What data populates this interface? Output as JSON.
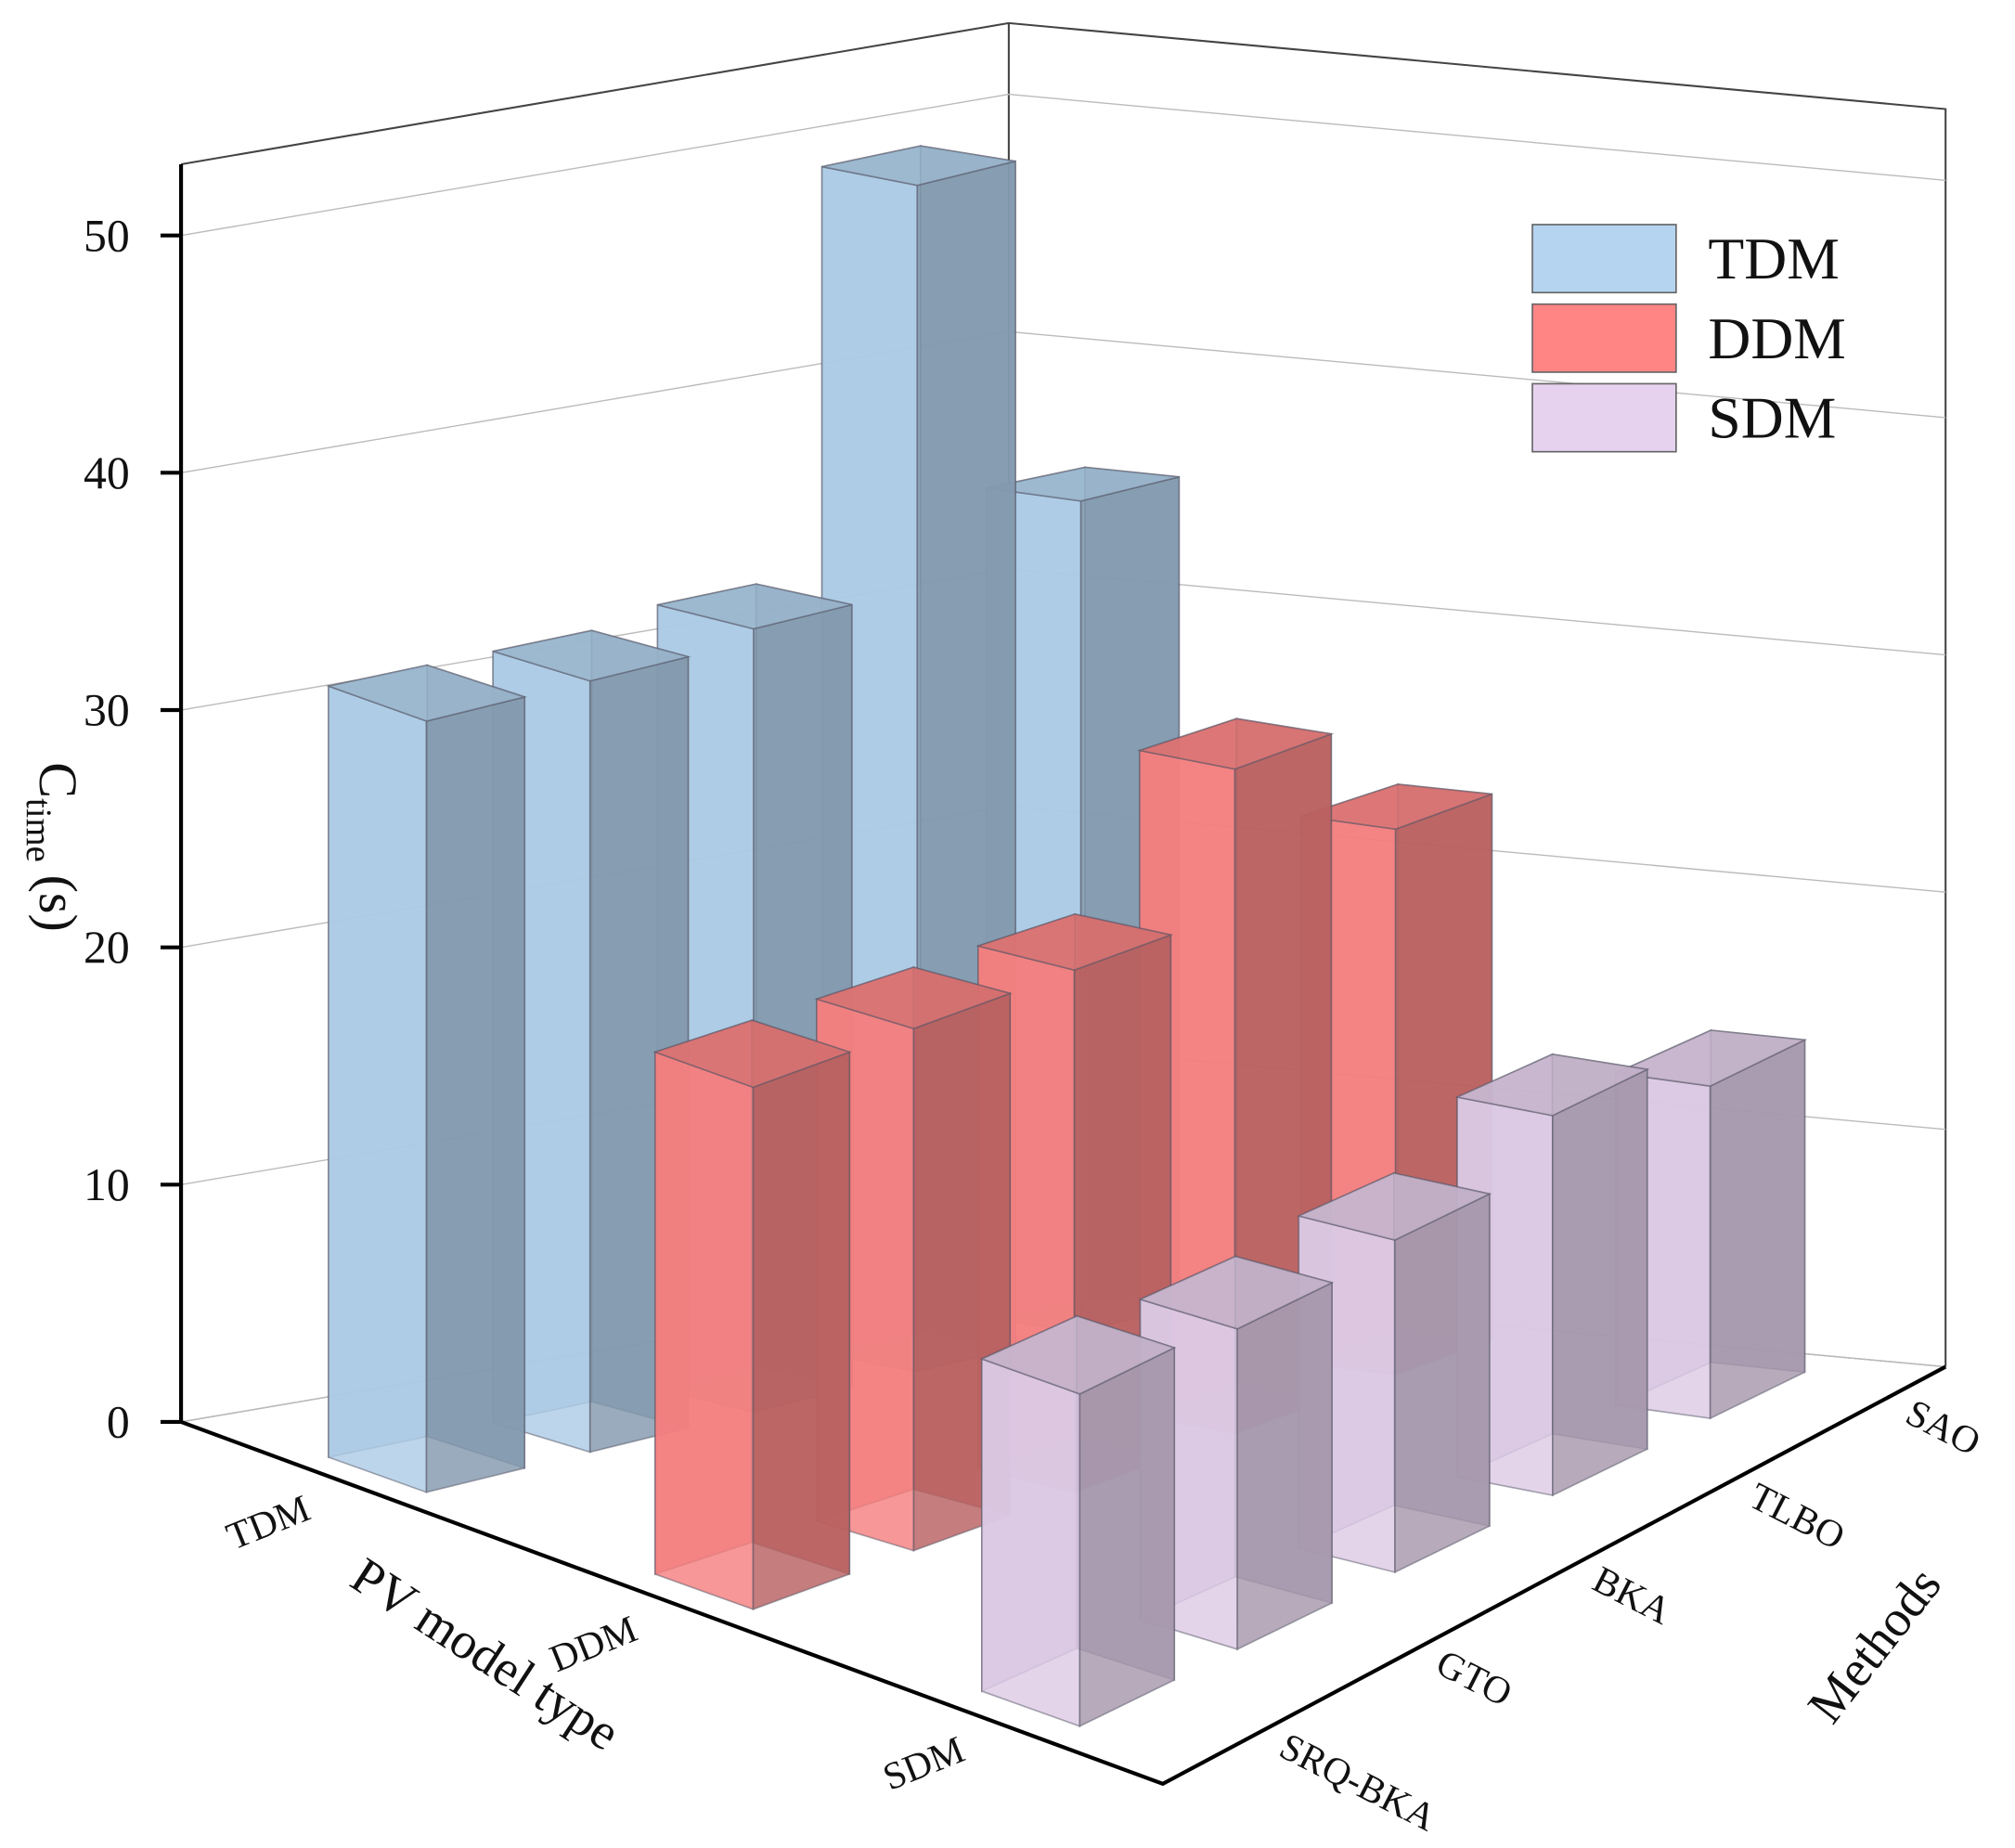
{
  "chart_data": {
    "type": "bar3d",
    "x_categories": [
      "TDM",
      "DDM",
      "SDM"
    ],
    "xlabel": "PV model type",
    "y_categories": [
      "SRQ-BKA",
      "GTO",
      "BKA",
      "TLBO",
      "SAO"
    ],
    "ylabel": "Methods",
    "zlabel": [
      "C",
      "time",
      "(s)"
    ],
    "zlim": [
      0,
      53
    ],
    "zticks": [
      0,
      10,
      20,
      30,
      40,
      50
    ],
    "grid": true,
    "legend": "upper right",
    "series": [
      {
        "name": "TDM",
        "color": "#b4d4f0",
        "values": [
          32.5,
          32.5,
          33,
          50,
          35
        ]
      },
      {
        "name": "DDM",
        "color": "#ff8585",
        "values": [
          22,
          22,
          22,
          28,
          23
        ]
      },
      {
        "name": "SDM",
        "color": "#e6d2ef",
        "values": [
          14,
          13.5,
          14,
          16,
          14
        ]
      }
    ]
  }
}
